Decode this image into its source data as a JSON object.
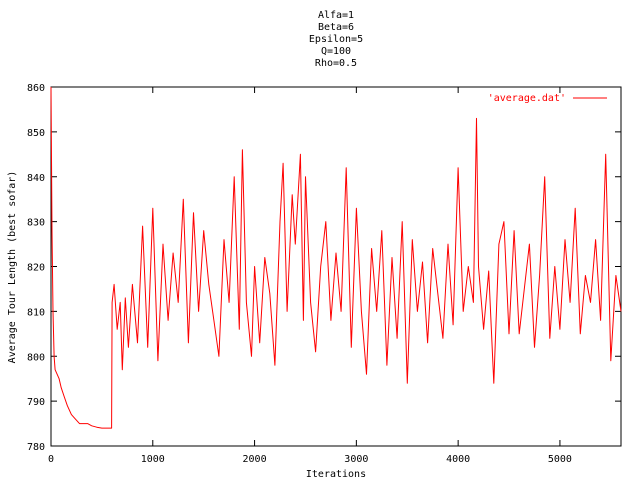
{
  "chart_data": {
    "type": "line",
    "title_lines": [
      "Alfa=1",
      "Beta=6",
      "Epsilon=5",
      "Q=100",
      "Rho=0.5"
    ],
    "xlabel": "Iterations",
    "ylabel": "Average Tour Length (best sofar)",
    "xlim": [
      0,
      5600
    ],
    "ylim": [
      780,
      860
    ],
    "xticks": [
      0,
      1000,
      2000,
      3000,
      4000,
      5000
    ],
    "yticks": [
      780,
      790,
      800,
      810,
      820,
      830,
      840,
      850,
      860
    ],
    "grid": false,
    "legend_position": "top-right",
    "series": [
      {
        "name": "'average.dat'",
        "color": "#ff0000",
        "x": [
          0,
          10,
          20,
          30,
          40,
          60,
          80,
          100,
          130,
          160,
          200,
          240,
          280,
          320,
          360,
          400,
          450,
          500,
          550,
          595,
          600,
          620,
          650,
          680,
          700,
          730,
          760,
          800,
          850,
          900,
          950,
          1000,
          1050,
          1100,
          1150,
          1200,
          1250,
          1300,
          1350,
          1400,
          1450,
          1500,
          1550,
          1600,
          1650,
          1700,
          1750,
          1800,
          1850,
          1880,
          1920,
          1970,
          2000,
          2050,
          2100,
          2150,
          2200,
          2250,
          2280,
          2320,
          2370,
          2400,
          2450,
          2480,
          2500,
          2550,
          2600,
          2650,
          2700,
          2750,
          2800,
          2850,
          2900,
          2950,
          3000,
          3050,
          3100,
          3150,
          3200,
          3250,
          3300,
          3350,
          3400,
          3450,
          3500,
          3550,
          3600,
          3650,
          3700,
          3750,
          3800,
          3850,
          3900,
          3950,
          4000,
          4050,
          4100,
          4150,
          4180,
          4200,
          4250,
          4300,
          4350,
          4400,
          4450,
          4500,
          4550,
          4600,
          4650,
          4700,
          4750,
          4800,
          4850,
          4900,
          4950,
          5000,
          5050,
          5100,
          5150,
          5200,
          5250,
          5300,
          5350,
          5400,
          5450,
          5500,
          5550,
          5600
        ],
        "y": [
          860,
          828,
          810,
          800,
          797,
          796,
          795,
          793,
          791,
          789,
          787,
          786,
          785,
          785,
          785,
          784.5,
          784.2,
          784,
          784,
          784,
          812,
          816,
          806,
          812,
          797,
          813,
          802,
          816,
          803,
          829,
          802,
          833,
          799,
          825,
          808,
          823,
          812,
          835,
          803,
          832,
          810,
          828,
          816,
          808,
          800,
          826,
          812,
          840,
          806,
          846,
          812,
          800,
          820,
          803,
          822,
          814,
          798,
          830,
          843,
          810,
          836,
          825,
          845,
          808,
          840,
          812,
          801,
          820,
          830,
          808,
          823,
          810,
          842,
          802,
          833,
          810,
          796,
          824,
          810,
          828,
          798,
          822,
          804,
          830,
          794,
          826,
          810,
          821,
          803,
          824,
          814,
          804,
          825,
          807,
          842,
          810,
          820,
          812,
          853,
          820,
          806,
          819,
          794,
          825,
          830,
          805,
          828,
          805,
          815,
          825,
          802,
          818,
          840,
          804,
          820,
          806,
          826,
          812,
          833,
          805,
          818,
          812,
          826,
          808,
          845,
          799,
          818,
          810
        ]
      }
    ]
  }
}
